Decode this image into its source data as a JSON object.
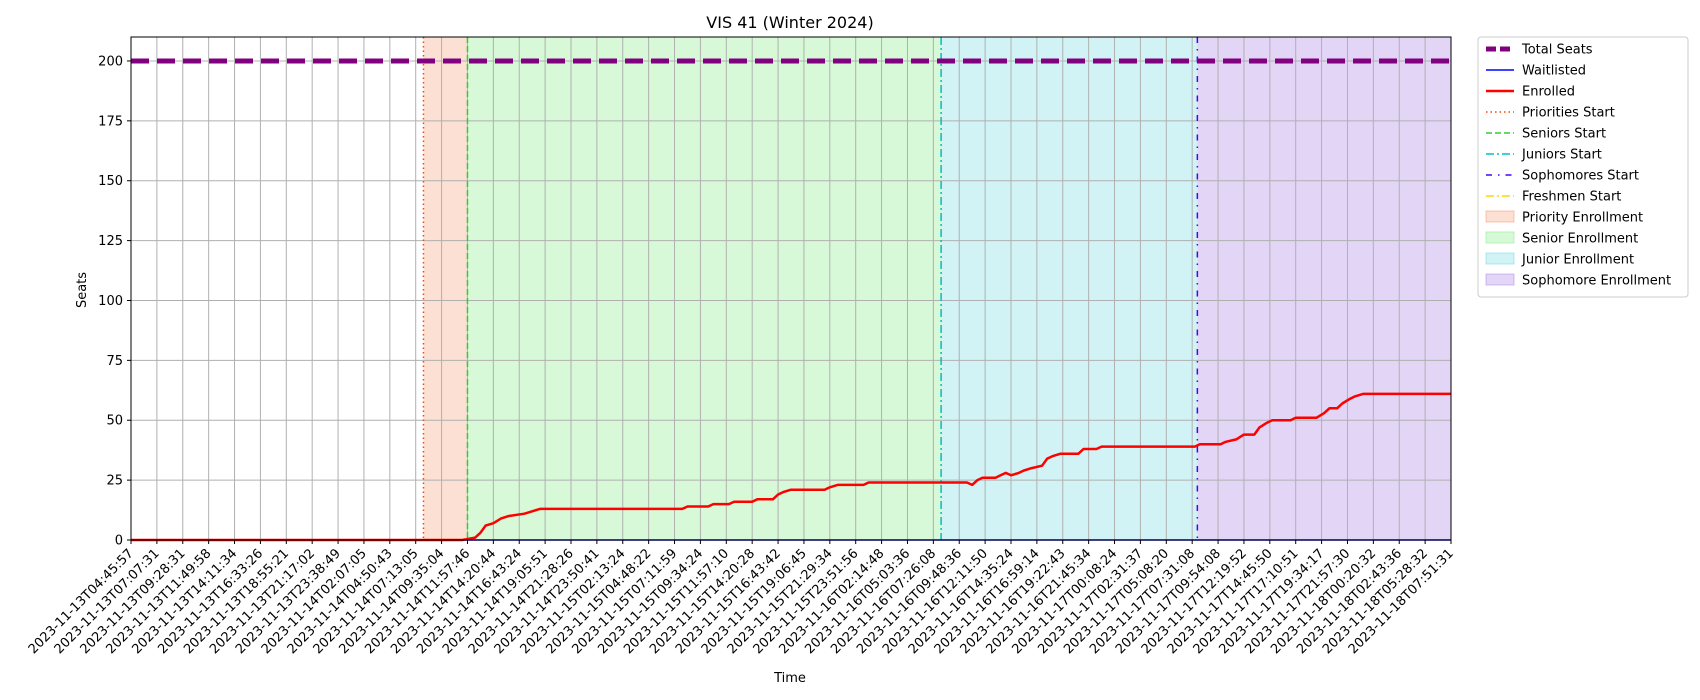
{
  "chart_data": {
    "type": "line",
    "title": "VIS 41 (Winter 2024)",
    "xlabel": "Time",
    "ylabel": "Seats",
    "ylim": [
      0,
      210
    ],
    "yticks": [
      0,
      25,
      50,
      75,
      100,
      125,
      150,
      175,
      200
    ],
    "grid": true,
    "legend_position": "outside-right",
    "x_tick_labels": [
      "2023-11-13T04:45:57",
      "2023-11-13T07:07:31",
      "2023-11-13T09:28:31",
      "2023-11-13T11:49:58",
      "2023-11-13T14:11:34",
      "2023-11-13T16:33:26",
      "2023-11-13T18:55:21",
      "2023-11-13T21:17:02",
      "2023-11-13T23:38:49",
      "2023-11-14T02:07:05",
      "2023-11-14T04:50:43",
      "2023-11-14T07:13:05",
      "2023-11-14T09:35:04",
      "2023-11-14T11:57:46",
      "2023-11-14T14:20:44",
      "2023-11-14T16:43:24",
      "2023-11-14T19:05:51",
      "2023-11-14T21:28:26",
      "2023-11-14T23:50:41",
      "2023-11-15T02:13:24",
      "2023-11-15T04:48:22",
      "2023-11-15T07:11:59",
      "2023-11-15T09:34:24",
      "2023-11-15T11:57:10",
      "2023-11-15T14:20:28",
      "2023-11-15T16:43:42",
      "2023-11-15T19:06:45",
      "2023-11-15T21:29:34",
      "2023-11-15T23:51:56",
      "2023-11-16T02:14:48",
      "2023-11-16T05:03:36",
      "2023-11-16T07:26:08",
      "2023-11-16T09:48:36",
      "2023-11-16T12:11:50",
      "2023-11-16T14:35:24",
      "2023-11-16T16:59:14",
      "2023-11-16T19:22:43",
      "2023-11-16T21:45:34",
      "2023-11-17T00:08:24",
      "2023-11-17T02:31:37",
      "2023-11-17T05:08:20",
      "2023-11-17T07:31:08",
      "2023-11-17T09:54:08",
      "2023-11-17T12:19:52",
      "2023-11-17T14:45:50",
      "2023-11-17T17:10:51",
      "2023-11-17T19:34:17",
      "2023-11-17T21:57:30",
      "2023-11-18T00:20:32",
      "2023-11-18T02:43:36",
      "2023-11-18T05:28:32",
      "2023-11-18T07:51:31"
    ],
    "series": [
      {
        "name": "Total Seats",
        "color": "#800080",
        "style": "dashed-thick",
        "points": [
          [
            0,
            200
          ],
          [
            51,
            200
          ]
        ]
      },
      {
        "name": "Waitlisted",
        "color": "#0000ff",
        "style": "solid",
        "points": [
          [
            0,
            0
          ],
          [
            51,
            0
          ]
        ]
      },
      {
        "name": "Enrolled",
        "color": "#ff0000",
        "style": "solid-thick",
        "points": [
          [
            0,
            0
          ],
          [
            12.8,
            0
          ],
          [
            13.3,
            1
          ],
          [
            13.5,
            3
          ],
          [
            13.7,
            6
          ],
          [
            14.0,
            7
          ],
          [
            14.3,
            9
          ],
          [
            14.6,
            10
          ],
          [
            15.2,
            11
          ],
          [
            15.5,
            12
          ],
          [
            15.8,
            13
          ],
          [
            21.3,
            13
          ],
          [
            21.5,
            14
          ],
          [
            22.3,
            14
          ],
          [
            22.5,
            15
          ],
          [
            23.1,
            15
          ],
          [
            23.3,
            16
          ],
          [
            24.0,
            16
          ],
          [
            24.2,
            17
          ],
          [
            24.8,
            17
          ],
          [
            25.0,
            19
          ],
          [
            25.2,
            20
          ],
          [
            25.5,
            21
          ],
          [
            26.8,
            21
          ],
          [
            27.0,
            22
          ],
          [
            27.3,
            23
          ],
          [
            28.3,
            23
          ],
          [
            28.5,
            24
          ],
          [
            32.3,
            24
          ],
          [
            32.5,
            23
          ],
          [
            32.7,
            25
          ],
          [
            32.9,
            26
          ],
          [
            33.4,
            26
          ],
          [
            33.6,
            27
          ],
          [
            33.8,
            28
          ],
          [
            34.0,
            27
          ],
          [
            34.3,
            28
          ],
          [
            34.5,
            29
          ],
          [
            34.8,
            30
          ],
          [
            35.2,
            31
          ],
          [
            35.4,
            34
          ],
          [
            35.6,
            35
          ],
          [
            35.9,
            36
          ],
          [
            36.6,
            36
          ],
          [
            36.8,
            38
          ],
          [
            37.3,
            38
          ],
          [
            37.5,
            39
          ],
          [
            41.1,
            39
          ],
          [
            41.3,
            40
          ],
          [
            42.1,
            40
          ],
          [
            42.3,
            41
          ],
          [
            42.7,
            42
          ],
          [
            43.0,
            44
          ],
          [
            43.4,
            44
          ],
          [
            43.6,
            47
          ],
          [
            43.9,
            49
          ],
          [
            44.1,
            50
          ],
          [
            44.8,
            50
          ],
          [
            45.0,
            51
          ],
          [
            45.8,
            51
          ],
          [
            46.1,
            53
          ],
          [
            46.3,
            55
          ],
          [
            46.6,
            55
          ],
          [
            46.8,
            57
          ],
          [
            47.1,
            59
          ],
          [
            47.3,
            60
          ],
          [
            47.6,
            61
          ],
          [
            51,
            61
          ]
        ]
      }
    ],
    "markers": [
      {
        "name": "Priorities Start",
        "x": 11.3,
        "color": "#ff4500",
        "style": "dotted"
      },
      {
        "name": "Seniors Start",
        "x": 13.0,
        "color": "#32cd32",
        "style": "dashed"
      },
      {
        "name": "Juniors Start",
        "x": 31.3,
        "color": "#00bfc4",
        "style": "dashdot"
      },
      {
        "name": "Sophomores Start",
        "x": 41.2,
        "color": "#4b00ff",
        "style": "sparse-dashdot"
      },
      {
        "name": "Freshmen Start",
        "x": null,
        "color": "#ffd700",
        "style": "dashdot"
      }
    ],
    "regions": [
      {
        "name": "Priority Enrollment",
        "x_start": 11.3,
        "x_end": 13.0,
        "color": "#f4a582",
        "opacity": 0.35
      },
      {
        "name": "Senior Enrollment",
        "x_start": 13.0,
        "x_end": 31.3,
        "color": "#90ee90",
        "opacity": 0.35
      },
      {
        "name": "Junior Enrollment",
        "x_start": 31.3,
        "x_end": 41.2,
        "color": "#7fdde4",
        "opacity": 0.35
      },
      {
        "name": "Sophomore Enrollment",
        "x_start": 41.2,
        "x_end": 51,
        "color": "#b695e8",
        "opacity": 0.4
      }
    ],
    "legend": [
      {
        "label": "Total Seats",
        "kind": "line",
        "color": "#800080",
        "style": "dashed-thick"
      },
      {
        "label": "Waitlisted",
        "kind": "line",
        "color": "#0000ff",
        "style": "solid"
      },
      {
        "label": "Enrolled",
        "kind": "line",
        "color": "#ff0000",
        "style": "solid-thick"
      },
      {
        "label": "Priorities Start",
        "kind": "line",
        "color": "#ff4500",
        "style": "dotted"
      },
      {
        "label": "Seniors Start",
        "kind": "line",
        "color": "#32cd32",
        "style": "dashed"
      },
      {
        "label": "Juniors Start",
        "kind": "line",
        "color": "#00bfc4",
        "style": "dashdot"
      },
      {
        "label": "Sophomores Start",
        "kind": "line",
        "color": "#4b00ff",
        "style": "sparse-dashdot"
      },
      {
        "label": "Freshmen Start",
        "kind": "line",
        "color": "#ffd700",
        "style": "dashdot"
      },
      {
        "label": "Priority Enrollment",
        "kind": "patch",
        "color": "#f4a582",
        "opacity": 0.35
      },
      {
        "label": "Senior Enrollment",
        "kind": "patch",
        "color": "#90ee90",
        "opacity": 0.35
      },
      {
        "label": "Junior Enrollment",
        "kind": "patch",
        "color": "#7fdde4",
        "opacity": 0.35
      },
      {
        "label": "Sophomore Enrollment",
        "kind": "patch",
        "color": "#b695e8",
        "opacity": 0.4
      }
    ]
  }
}
